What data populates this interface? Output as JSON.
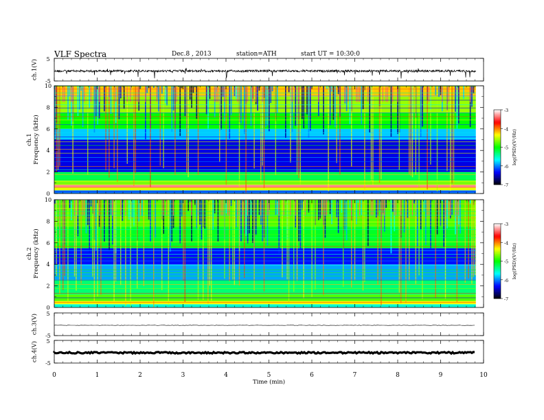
{
  "header": {
    "title": "VLF Spectra",
    "date": "Dec.8 , 2013",
    "station": "station=ATH",
    "start": "start UT = 10:30:0"
  },
  "colors": {
    "colormap": [
      "#000000",
      "#0000ff",
      "#00ffff",
      "#00ff00",
      "#ffff00",
      "#ff0000",
      "#ffffff"
    ]
  },
  "chart_data": [
    {
      "type": "line",
      "name": "ch1-waveform",
      "ylabel": "ch.1(V)",
      "ytick_labels": [
        "5",
        "-5"
      ],
      "ylim": [
        -5,
        5
      ],
      "xlim": [
        0,
        10
      ],
      "x_extent_min": 9.82,
      "level": 0.0,
      "note_series": "noisy waveform with frequent spikes"
    },
    {
      "type": "heatmap",
      "name": "ch1-spectrogram",
      "ylabel": "ch.1",
      "ylabel2": "Frequency (kHz)",
      "ytick_labels": [
        "0",
        "2",
        "4",
        "6",
        "8",
        "10"
      ],
      "ylim": [
        0,
        10
      ],
      "xlim": [
        0,
        10
      ],
      "x_extent_min": 9.82,
      "colorbar": {
        "label": "log(PSD)(V²/Hz)",
        "ticks": [
          "-3",
          "-4",
          "-5",
          "-6",
          "-7"
        ],
        "range": [
          -7,
          -3
        ]
      },
      "bands": [
        {
          "fmin": 0.0,
          "fmax": 0.3,
          "level": -6.0
        },
        {
          "fmin": 0.3,
          "fmax": 0.55,
          "level": -4.4
        },
        {
          "fmin": 0.55,
          "fmax": 0.8,
          "level": -3.3
        },
        {
          "fmin": 0.8,
          "fmax": 1.2,
          "level": -4.6
        },
        {
          "fmin": 1.2,
          "fmax": 2.0,
          "level": -5.2
        },
        {
          "fmin": 2.0,
          "fmax": 5.0,
          "level": -6.4
        },
        {
          "fmin": 5.0,
          "fmax": 6.0,
          "level": -5.8
        },
        {
          "fmin": 6.0,
          "fmax": 7.5,
          "level": -5.0
        },
        {
          "fmin": 7.5,
          "fmax": 9.0,
          "level": -4.6
        },
        {
          "fmin": 9.0,
          "fmax": 10.0,
          "level": -4.2
        }
      ]
    },
    {
      "type": "heatmap",
      "name": "ch2-spectrogram",
      "ylabel": "ch.2",
      "ylabel2": "Frequency (kHz)",
      "ytick_labels": [
        "0",
        "2",
        "4",
        "6",
        "8",
        "10"
      ],
      "ylim": [
        0,
        10
      ],
      "xlim": [
        0,
        10
      ],
      "x_extent_min": 9.82,
      "colorbar": {
        "label": "log(PSD)(V²/Hz)",
        "ticks": [
          "-3",
          "-4",
          "-5",
          "-6",
          "-7"
        ],
        "range": [
          -7,
          -3
        ]
      },
      "bands": [
        {
          "fmin": 0.0,
          "fmax": 0.3,
          "level": -5.6
        },
        {
          "fmin": 0.3,
          "fmax": 0.6,
          "level": -4.3
        },
        {
          "fmin": 0.6,
          "fmax": 1.2,
          "level": -4.8
        },
        {
          "fmin": 1.2,
          "fmax": 2.6,
          "level": -5.3
        },
        {
          "fmin": 2.6,
          "fmax": 4.0,
          "level": -5.9
        },
        {
          "fmin": 4.0,
          "fmax": 5.5,
          "level": -6.3
        },
        {
          "fmin": 5.5,
          "fmax": 7.5,
          "level": -5.1
        },
        {
          "fmin": 7.5,
          "fmax": 10.0,
          "level": -4.8
        }
      ]
    },
    {
      "type": "line",
      "name": "ch3-waveform",
      "ylabel": "ch.3(V)",
      "ytick_labels": [
        "5",
        "-5"
      ],
      "ylim": [
        -5,
        5
      ],
      "xlim": [
        0,
        10
      ],
      "x_extent_min": 9.82,
      "level": 0.0
    },
    {
      "type": "line",
      "name": "ch4-waveform",
      "ylabel": "ch.4(V)",
      "ytick_labels": [
        "5",
        "-5"
      ],
      "ylim": [
        -5,
        5
      ],
      "xlim": [
        0,
        10
      ],
      "x_extent_min": 9.82,
      "level": 0.0,
      "xlabel": "Time (min)",
      "xtick_labels": [
        "0",
        "1",
        "2",
        "3",
        "4",
        "5",
        "6",
        "7",
        "8",
        "9",
        "10"
      ]
    }
  ]
}
